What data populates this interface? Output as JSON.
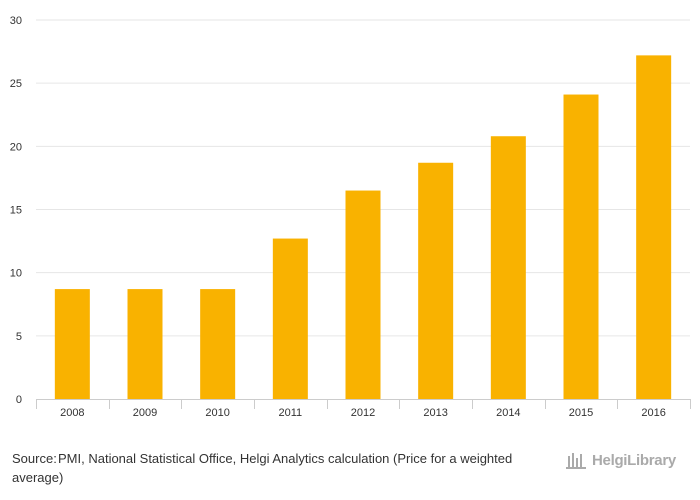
{
  "chart_data": {
    "type": "bar",
    "categories": [
      "2008",
      "2009",
      "2010",
      "2011",
      "2012",
      "2013",
      "2014",
      "2015",
      "2016"
    ],
    "series": [
      {
        "values": [
          8.7,
          8.7,
          8.7,
          12.7,
          16.5,
          18.7,
          20.8,
          24.1,
          27.2
        ]
      }
    ],
    "title": "",
    "xlabel": "",
    "ylabel": "",
    "ylim": [
      0,
      30
    ],
    "yticks": [
      "0",
      "5",
      "10",
      "15",
      "20",
      "25",
      "30"
    ],
    "grid": true,
    "bar_color": "#f9b200"
  },
  "footer": {
    "source_label": "Source:",
    "source_text": "PMI, National Statistical Office, Helgi Analytics calculation (Price for a weighted average)",
    "logo_text": "HelgiLibrary",
    "logo_icon": "helgi-library-icon"
  }
}
